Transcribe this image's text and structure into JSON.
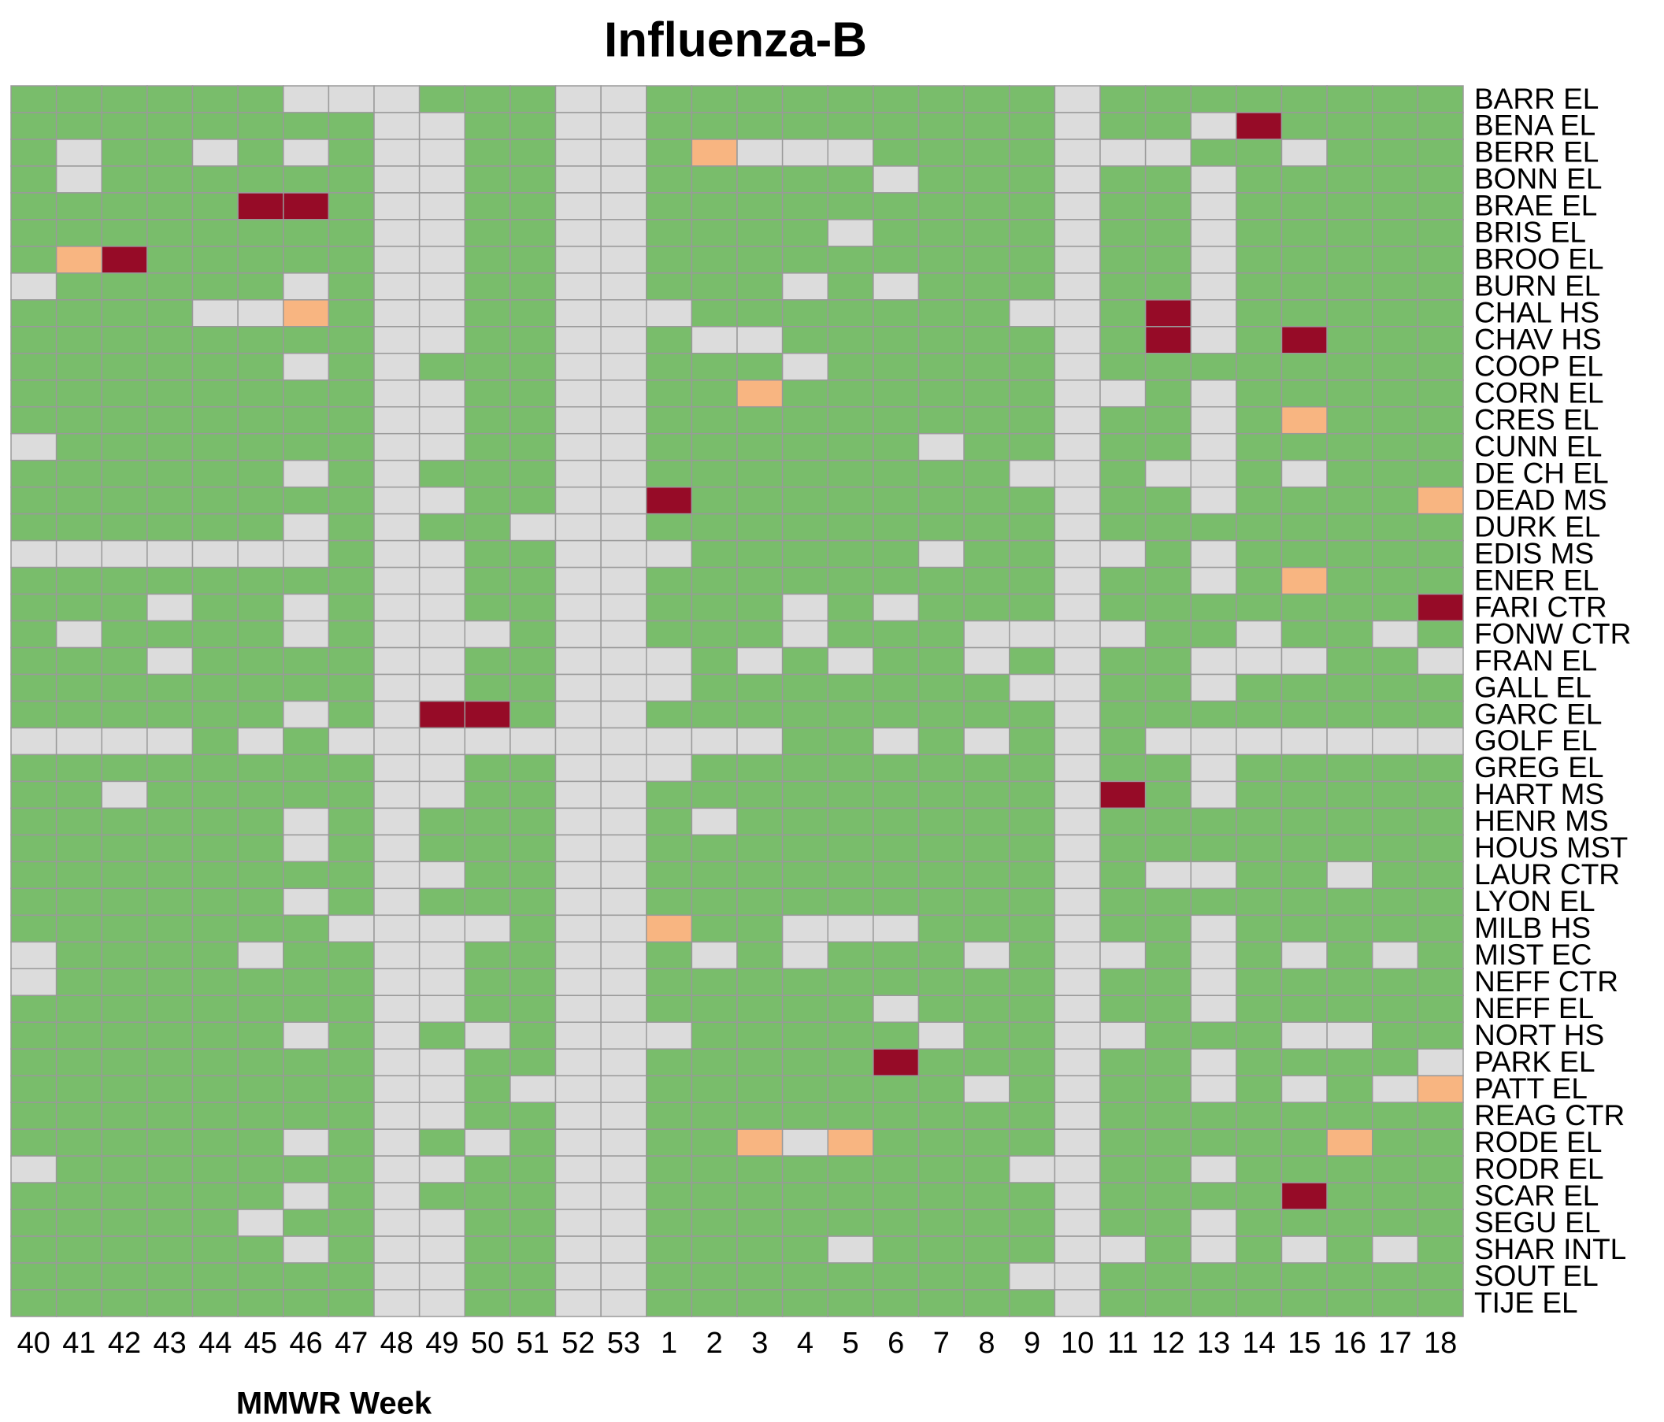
{
  "chart_data": {
    "type": "heatmap",
    "title": "Influenza-B",
    "x_label": "MMWR Week",
    "categories": [
      "40",
      "41",
      "42",
      "43",
      "44",
      "45",
      "46",
      "47",
      "48",
      "49",
      "50",
      "51",
      "52",
      "53",
      "1",
      "2",
      "3",
      "4",
      "5",
      "6",
      "7",
      "8",
      "9",
      "10",
      "11",
      "12",
      "13",
      "14",
      "15",
      "16",
      "17",
      "18"
    ],
    "rows": [
      "BARR EL",
      "BENA EL",
      "BERR EL",
      "BONN EL",
      "BRAE EL",
      "BRIS EL",
      "BROO EL",
      "BURN EL",
      "CHAL HS",
      "CHAV HS",
      "COOP EL",
      "CORN EL",
      "CRES EL",
      "CUNN EL",
      "DE CH EL",
      "DEAD MS",
      "DURK EL",
      "EDIS MS",
      "ENER EL",
      "FARI CTR",
      "FONW CTR",
      "FRAN EL",
      "GALL EL",
      "GARC EL",
      "GOLF EL",
      "GREG EL",
      "HART MS",
      "HENR MS",
      "HOUS MST",
      "LAUR CTR",
      "LYON EL",
      "MILB HS",
      "MIST EC",
      "NEFF CTR",
      "NEFF EL",
      "NORT HS",
      "PARK EL",
      "PATT EL",
      "REAG CTR",
      "RODE EL",
      "RODR EL",
      "SCAR EL",
      "SEGU EL",
      "SHAR INTL",
      "SOUT EL",
      "TIJE EL"
    ],
    "colors": [
      "#dcdcdc",
      "#79bd6b",
      "#f8b581",
      "#960b27"
    ],
    "values": [
      [
        1,
        1,
        1,
        1,
        1,
        1,
        0,
        0,
        0,
        1,
        1,
        1,
        0,
        0,
        1,
        1,
        1,
        1,
        1,
        1,
        1,
        1,
        1,
        0,
        1,
        1,
        1,
        1,
        1,
        1,
        1,
        1
      ],
      [
        1,
        1,
        1,
        1,
        1,
        1,
        1,
        1,
        0,
        0,
        1,
        1,
        0,
        0,
        1,
        1,
        1,
        1,
        1,
        1,
        1,
        1,
        1,
        0,
        1,
        1,
        0,
        3,
        1,
        1,
        1,
        1
      ],
      [
        1,
        0,
        1,
        1,
        0,
        1,
        0,
        1,
        0,
        0,
        1,
        1,
        0,
        0,
        1,
        2,
        0,
        0,
        0,
        1,
        1,
        1,
        1,
        0,
        0,
        0,
        1,
        1,
        0,
        1,
        1,
        1
      ],
      [
        1,
        0,
        1,
        1,
        1,
        1,
        1,
        1,
        0,
        0,
        1,
        1,
        0,
        0,
        1,
        1,
        1,
        1,
        1,
        0,
        1,
        1,
        1,
        0,
        1,
        1,
        0,
        1,
        1,
        1,
        1,
        1
      ],
      [
        1,
        1,
        1,
        1,
        1,
        3,
        3,
        1,
        0,
        0,
        1,
        1,
        0,
        0,
        1,
        1,
        1,
        1,
        1,
        1,
        1,
        1,
        1,
        0,
        1,
        1,
        0,
        1,
        1,
        1,
        1,
        1
      ],
      [
        1,
        1,
        1,
        1,
        1,
        1,
        1,
        1,
        0,
        0,
        1,
        1,
        0,
        0,
        1,
        1,
        1,
        1,
        0,
        1,
        1,
        1,
        1,
        0,
        1,
        1,
        0,
        1,
        1,
        1,
        1,
        1
      ],
      [
        1,
        2,
        3,
        1,
        1,
        1,
        1,
        1,
        0,
        0,
        1,
        1,
        0,
        0,
        1,
        1,
        1,
        1,
        1,
        1,
        1,
        1,
        1,
        0,
        1,
        1,
        0,
        1,
        1,
        1,
        1,
        1
      ],
      [
        0,
        1,
        1,
        1,
        1,
        1,
        0,
        1,
        0,
        0,
        1,
        1,
        0,
        0,
        1,
        1,
        1,
        0,
        1,
        0,
        1,
        1,
        1,
        0,
        1,
        1,
        0,
        1,
        1,
        1,
        1,
        1
      ],
      [
        1,
        1,
        1,
        1,
        0,
        0,
        2,
        1,
        0,
        0,
        1,
        1,
        0,
        0,
        0,
        1,
        1,
        1,
        1,
        1,
        1,
        1,
        0,
        0,
        1,
        3,
        0,
        1,
        1,
        1,
        1,
        1
      ],
      [
        1,
        1,
        1,
        1,
        1,
        1,
        1,
        1,
        0,
        0,
        1,
        1,
        0,
        0,
        1,
        0,
        0,
        1,
        1,
        1,
        1,
        1,
        1,
        0,
        1,
        3,
        0,
        1,
        3,
        1,
        1,
        1
      ],
      [
        1,
        1,
        1,
        1,
        1,
        1,
        0,
        1,
        0,
        1,
        1,
        1,
        0,
        0,
        1,
        1,
        1,
        0,
        1,
        1,
        1,
        1,
        1,
        0,
        1,
        1,
        1,
        1,
        1,
        1,
        1,
        1
      ],
      [
        1,
        1,
        1,
        1,
        1,
        1,
        1,
        1,
        0,
        0,
        1,
        1,
        0,
        0,
        1,
        1,
        2,
        1,
        1,
        1,
        1,
        1,
        1,
        0,
        0,
        1,
        0,
        1,
        1,
        1,
        1,
        1
      ],
      [
        1,
        1,
        1,
        1,
        1,
        1,
        1,
        1,
        0,
        0,
        1,
        1,
        0,
        0,
        1,
        1,
        1,
        1,
        1,
        1,
        1,
        1,
        1,
        0,
        1,
        1,
        0,
        1,
        2,
        1,
        1,
        1
      ],
      [
        0,
        1,
        1,
        1,
        1,
        1,
        1,
        1,
        0,
        0,
        1,
        1,
        0,
        0,
        1,
        1,
        1,
        1,
        1,
        1,
        0,
        1,
        1,
        0,
        1,
        1,
        0,
        1,
        1,
        1,
        1,
        1
      ],
      [
        1,
        1,
        1,
        1,
        1,
        1,
        0,
        1,
        0,
        1,
        1,
        1,
        0,
        0,
        1,
        1,
        1,
        1,
        1,
        1,
        1,
        1,
        0,
        0,
        1,
        0,
        0,
        1,
        0,
        1,
        1,
        1
      ],
      [
        1,
        1,
        1,
        1,
        1,
        1,
        1,
        1,
        0,
        0,
        1,
        1,
        0,
        0,
        3,
        1,
        1,
        1,
        1,
        1,
        1,
        1,
        1,
        0,
        1,
        1,
        0,
        1,
        1,
        1,
        1,
        2
      ],
      [
        1,
        1,
        1,
        1,
        1,
        1,
        0,
        1,
        0,
        1,
        1,
        0,
        0,
        0,
        1,
        1,
        1,
        1,
        1,
        1,
        1,
        1,
        1,
        0,
        1,
        1,
        1,
        1,
        1,
        1,
        1,
        1
      ],
      [
        0,
        0,
        0,
        0,
        0,
        0,
        0,
        1,
        0,
        0,
        1,
        1,
        0,
        0,
        0,
        1,
        1,
        1,
        1,
        1,
        0,
        1,
        1,
        0,
        0,
        1,
        0,
        1,
        1,
        1,
        1,
        1
      ],
      [
        1,
        1,
        1,
        1,
        1,
        1,
        1,
        1,
        0,
        0,
        1,
        1,
        0,
        0,
        1,
        1,
        1,
        1,
        1,
        1,
        1,
        1,
        1,
        0,
        1,
        1,
        0,
        1,
        2,
        1,
        1,
        1
      ],
      [
        1,
        1,
        1,
        0,
        1,
        1,
        0,
        1,
        0,
        0,
        1,
        1,
        0,
        0,
        1,
        1,
        1,
        0,
        1,
        0,
        1,
        1,
        1,
        0,
        1,
        1,
        1,
        1,
        1,
        1,
        1,
        3
      ],
      [
        1,
        0,
        1,
        1,
        1,
        1,
        0,
        1,
        0,
        0,
        0,
        1,
        0,
        0,
        1,
        1,
        1,
        0,
        1,
        1,
        1,
        0,
        0,
        0,
        0,
        1,
        1,
        0,
        1,
        1,
        0,
        1
      ],
      [
        1,
        1,
        1,
        0,
        1,
        1,
        1,
        1,
        0,
        0,
        1,
        1,
        0,
        0,
        0,
        1,
        0,
        1,
        0,
        1,
        1,
        0,
        1,
        0,
        1,
        1,
        0,
        0,
        0,
        1,
        1,
        0
      ],
      [
        1,
        1,
        1,
        1,
        1,
        1,
        1,
        1,
        0,
        0,
        1,
        1,
        0,
        0,
        0,
        1,
        1,
        1,
        1,
        1,
        1,
        1,
        0,
        0,
        1,
        1,
        0,
        1,
        1,
        1,
        1,
        1
      ],
      [
        1,
        1,
        1,
        1,
        1,
        1,
        0,
        1,
        0,
        3,
        3,
        1,
        0,
        0,
        1,
        1,
        1,
        1,
        1,
        1,
        1,
        1,
        1,
        0,
        1,
        1,
        1,
        1,
        1,
        1,
        1,
        1
      ],
      [
        0,
        0,
        0,
        0,
        1,
        0,
        1,
        0,
        0,
        0,
        0,
        0,
        0,
        0,
        0,
        0,
        0,
        1,
        1,
        0,
        1,
        0,
        1,
        0,
        1,
        0,
        0,
        0,
        0,
        0,
        0,
        0
      ],
      [
        1,
        1,
        1,
        1,
        1,
        1,
        1,
        1,
        0,
        0,
        1,
        1,
        0,
        0,
        0,
        1,
        1,
        1,
        1,
        1,
        1,
        1,
        1,
        0,
        1,
        1,
        0,
        1,
        1,
        1,
        1,
        1
      ],
      [
        1,
        1,
        0,
        1,
        1,
        1,
        1,
        1,
        0,
        0,
        1,
        1,
        0,
        0,
        1,
        1,
        1,
        1,
        1,
        1,
        1,
        1,
        1,
        0,
        3,
        1,
        0,
        1,
        1,
        1,
        1,
        1
      ],
      [
        1,
        1,
        1,
        1,
        1,
        1,
        0,
        1,
        0,
        1,
        1,
        1,
        0,
        0,
        1,
        0,
        1,
        1,
        1,
        1,
        1,
        1,
        1,
        0,
        1,
        1,
        1,
        1,
        1,
        1,
        1,
        1
      ],
      [
        1,
        1,
        1,
        1,
        1,
        1,
        0,
        1,
        0,
        1,
        1,
        1,
        0,
        0,
        1,
        1,
        1,
        1,
        1,
        1,
        1,
        1,
        1,
        0,
        1,
        1,
        1,
        1,
        1,
        1,
        1,
        1
      ],
      [
        1,
        1,
        1,
        1,
        1,
        1,
        1,
        1,
        0,
        0,
        1,
        1,
        0,
        0,
        1,
        1,
        1,
        1,
        1,
        1,
        1,
        1,
        1,
        0,
        1,
        0,
        0,
        1,
        1,
        0,
        1,
        1
      ],
      [
        1,
        1,
        1,
        1,
        1,
        1,
        0,
        1,
        0,
        1,
        1,
        1,
        0,
        0,
        1,
        1,
        1,
        1,
        1,
        1,
        1,
        1,
        1,
        0,
        1,
        1,
        1,
        1,
        1,
        1,
        1,
        1
      ],
      [
        1,
        1,
        1,
        1,
        1,
        1,
        1,
        0,
        0,
        0,
        0,
        1,
        0,
        0,
        2,
        1,
        1,
        0,
        0,
        0,
        1,
        1,
        1,
        0,
        1,
        1,
        0,
        1,
        1,
        1,
        1,
        1
      ],
      [
        0,
        1,
        1,
        1,
        1,
        0,
        1,
        1,
        0,
        0,
        1,
        1,
        0,
        0,
        1,
        0,
        1,
        0,
        1,
        1,
        1,
        0,
        1,
        0,
        0,
        1,
        0,
        1,
        0,
        1,
        0,
        1
      ],
      [
        0,
        1,
        1,
        1,
        1,
        1,
        1,
        1,
        0,
        0,
        1,
        1,
        0,
        0,
        1,
        1,
        1,
        1,
        1,
        1,
        1,
        1,
        1,
        0,
        1,
        1,
        0,
        1,
        1,
        1,
        1,
        1
      ],
      [
        1,
        1,
        1,
        1,
        1,
        1,
        1,
        1,
        0,
        0,
        1,
        1,
        0,
        0,
        1,
        1,
        1,
        1,
        1,
        0,
        1,
        1,
        1,
        0,
        1,
        1,
        0,
        1,
        1,
        1,
        1,
        1
      ],
      [
        1,
        1,
        1,
        1,
        1,
        1,
        0,
        1,
        0,
        1,
        0,
        1,
        0,
        0,
        0,
        1,
        1,
        1,
        1,
        1,
        0,
        1,
        1,
        0,
        0,
        1,
        1,
        1,
        0,
        0,
        1,
        1
      ],
      [
        1,
        1,
        1,
        1,
        1,
        1,
        1,
        1,
        0,
        0,
        1,
        1,
        0,
        0,
        1,
        1,
        1,
        1,
        1,
        3,
        1,
        1,
        1,
        0,
        1,
        1,
        0,
        1,
        1,
        1,
        1,
        0
      ],
      [
        1,
        1,
        1,
        1,
        1,
        1,
        1,
        1,
        0,
        0,
        1,
        0,
        0,
        0,
        1,
        1,
        1,
        1,
        1,
        1,
        1,
        0,
        1,
        0,
        1,
        1,
        0,
        1,
        0,
        1,
        0,
        2
      ],
      [
        1,
        1,
        1,
        1,
        1,
        1,
        1,
        1,
        0,
        0,
        1,
        1,
        0,
        0,
        1,
        1,
        1,
        1,
        1,
        1,
        1,
        1,
        1,
        0,
        1,
        1,
        1,
        1,
        1,
        1,
        1,
        1
      ],
      [
        1,
        1,
        1,
        1,
        1,
        1,
        0,
        1,
        0,
        1,
        0,
        1,
        0,
        0,
        1,
        1,
        2,
        0,
        2,
        1,
        1,
        1,
        1,
        0,
        1,
        1,
        1,
        1,
        1,
        2,
        1,
        1
      ],
      [
        0,
        1,
        1,
        1,
        1,
        1,
        1,
        1,
        0,
        0,
        1,
        1,
        0,
        0,
        1,
        1,
        1,
        1,
        1,
        1,
        1,
        1,
        0,
        0,
        1,
        1,
        0,
        1,
        1,
        1,
        1,
        1
      ],
      [
        1,
        1,
        1,
        1,
        1,
        1,
        0,
        1,
        0,
        1,
        1,
        1,
        0,
        0,
        1,
        1,
        1,
        1,
        1,
        1,
        1,
        1,
        1,
        0,
        1,
        1,
        1,
        1,
        3,
        1,
        1,
        1
      ],
      [
        1,
        1,
        1,
        1,
        1,
        0,
        1,
        1,
        0,
        0,
        1,
        1,
        0,
        0,
        1,
        1,
        1,
        1,
        1,
        1,
        1,
        1,
        1,
        0,
        1,
        1,
        0,
        1,
        1,
        1,
        1,
        1
      ],
      [
        1,
        1,
        1,
        1,
        1,
        1,
        0,
        1,
        0,
        0,
        1,
        1,
        0,
        0,
        1,
        1,
        1,
        1,
        0,
        1,
        1,
        1,
        1,
        0,
        0,
        1,
        0,
        1,
        0,
        1,
        0,
        1
      ],
      [
        1,
        1,
        1,
        1,
        1,
        1,
        1,
        1,
        0,
        0,
        1,
        1,
        0,
        0,
        1,
        1,
        1,
        1,
        1,
        1,
        1,
        1,
        0,
        0,
        1,
        1,
        1,
        1,
        1,
        1,
        1,
        1
      ],
      [
        1,
        1,
        1,
        1,
        1,
        1,
        1,
        1,
        0,
        0,
        1,
        1,
        0,
        0,
        1,
        1,
        1,
        1,
        1,
        1,
        1,
        1,
        1,
        0,
        1,
        1,
        1,
        1,
        1,
        1,
        1,
        1
      ]
    ]
  }
}
